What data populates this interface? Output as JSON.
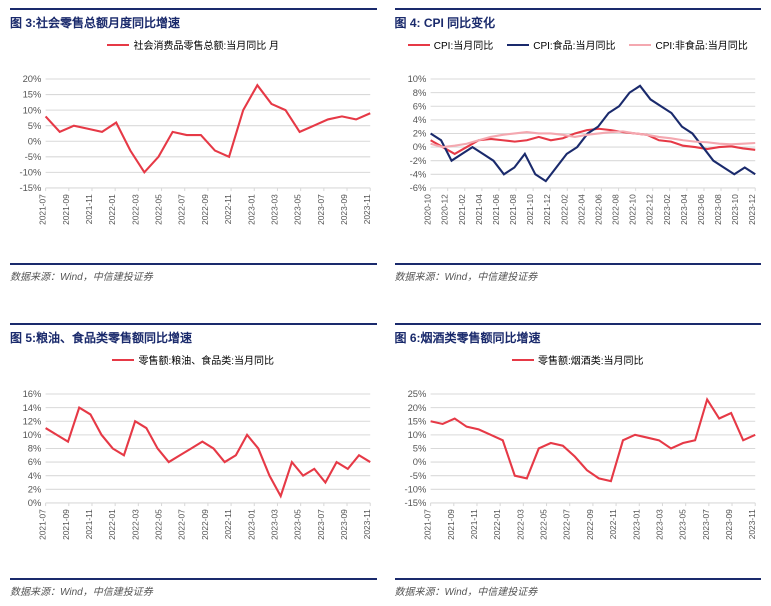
{
  "global": {
    "source_label": "数据来源：Wind，中信建投证券",
    "colors": {
      "title_border": "#1a2a6c",
      "grid": "#d9d9d9",
      "axis_text": "#555555",
      "bg": "#ffffff",
      "red": "#e63946",
      "navy": "#1a2a6c",
      "pink": "#f4a8b0"
    },
    "font": {
      "title": 12,
      "legend": 10,
      "axis": 9,
      "source": 10
    }
  },
  "charts": [
    {
      "id": "chart3",
      "title": "图 3:社会零售总额月度同比增速",
      "type": "line",
      "legend": [
        {
          "label": "社会消费品零售总额:当月同比 月",
          "color": "#e63946"
        }
      ],
      "y": {
        "min": -15,
        "max": 20,
        "step": 5,
        "suffix": "%"
      },
      "x": [
        "2021-07",
        "2021-09",
        "2021-11",
        "2022-01",
        "2022-03",
        "2022-05",
        "2022-07",
        "2022-09",
        "2022-11",
        "2023-01",
        "2023-03",
        "2023-05",
        "2023-07",
        "2023-09",
        "2023-11"
      ],
      "series": [
        {
          "color": "#e63946",
          "width": 2,
          "values": [
            8,
            3,
            5,
            4,
            3,
            6,
            -3,
            -10,
            -5,
            3,
            2,
            2,
            -3,
            -5,
            10,
            18,
            12,
            10,
            3,
            5,
            7,
            8,
            7,
            9
          ]
        }
      ]
    },
    {
      "id": "chart4",
      "title": "图 4: CPI 同比变化",
      "type": "line",
      "legend": [
        {
          "label": "CPI:当月同比",
          "color": "#e63946"
        },
        {
          "label": "CPI:食品:当月同比",
          "color": "#1a2a6c"
        },
        {
          "label": "CPI:非食品:当月同比",
          "color": "#f4a8b0"
        }
      ],
      "y": {
        "min": -6,
        "max": 10,
        "step": 2,
        "suffix": "%"
      },
      "x": [
        "2020-10",
        "2020-12",
        "2021-02",
        "2021-04",
        "2021-06",
        "2021-08",
        "2021-10",
        "2021-12",
        "2022-02",
        "2022-04",
        "2022-06",
        "2022-08",
        "2022-10",
        "2022-12",
        "2023-02",
        "2023-04",
        "2023-06",
        "2023-08",
        "2023-10",
        "2023-12"
      ],
      "series": [
        {
          "color": "#e63946",
          "width": 2,
          "values": [
            1,
            0,
            -1,
            0,
            1,
            1.2,
            1,
            0.8,
            1,
            1.5,
            1,
            1.3,
            2,
            2.5,
            2.7,
            2.5,
            2.2,
            2,
            1.8,
            1,
            0.8,
            0.2,
            0,
            -0.3,
            0,
            0.1,
            -0.2,
            -0.4
          ]
        },
        {
          "color": "#1a2a6c",
          "width": 2,
          "values": [
            2,
            1,
            -2,
            -1,
            0,
            -1,
            -2,
            -4,
            -3,
            -1,
            -4,
            -5,
            -3,
            -1,
            0,
            2,
            3,
            5,
            6,
            8,
            9,
            7,
            6,
            5,
            3,
            2,
            0,
            -2,
            -3,
            -4,
            -3,
            -4
          ]
        },
        {
          "color": "#f4a8b0",
          "width": 2,
          "values": [
            0.5,
            0,
            0.2,
            0.5,
            1,
            1.5,
            1.8,
            2,
            2.2,
            2,
            2,
            1.8,
            1.5,
            1.8,
            2,
            2.2,
            2.3,
            2,
            1.8,
            1.5,
            1.3,
            1,
            0.8,
            0.7,
            0.5,
            0.4,
            0.5,
            0.6
          ]
        }
      ]
    },
    {
      "id": "chart5",
      "title": "图 5:粮油、食品类零售额同比增速",
      "type": "line",
      "legend": [
        {
          "label": "零售额:粮油、食品类:当月同比",
          "color": "#e63946"
        }
      ],
      "y": {
        "min": 0,
        "max": 16,
        "step": 2,
        "suffix": "%"
      },
      "x": [
        "2021-07",
        "2021-09",
        "2021-11",
        "2022-01",
        "2022-03",
        "2022-05",
        "2022-07",
        "2022-09",
        "2022-11",
        "2023-01",
        "2023-03",
        "2023-05",
        "2023-07",
        "2023-09",
        "2023-11"
      ],
      "series": [
        {
          "color": "#e63946",
          "width": 2,
          "values": [
            11,
            10,
            9,
            14,
            13,
            10,
            8,
            7,
            12,
            11,
            8,
            6,
            7,
            8,
            9,
            8,
            6,
            7,
            10,
            8,
            4,
            1,
            6,
            4,
            5,
            3,
            6,
            5,
            7,
            6
          ]
        }
      ]
    },
    {
      "id": "chart6",
      "title": "图 6:烟酒类零售额同比增速",
      "type": "line",
      "legend": [
        {
          "label": "零售额:烟酒类:当月同比",
          "color": "#e63946"
        }
      ],
      "y": {
        "min": -15,
        "max": 25,
        "step": 5,
        "suffix": "%"
      },
      "x": [
        "2021-07",
        "2021-09",
        "2021-11",
        "2022-01",
        "2022-03",
        "2022-05",
        "2022-07",
        "2022-09",
        "2022-11",
        "2023-01",
        "2023-03",
        "2023-05",
        "2023-07",
        "2023-09",
        "2023-11"
      ],
      "series": [
        {
          "color": "#e63946",
          "width": 2,
          "values": [
            15,
            14,
            16,
            13,
            12,
            10,
            8,
            -5,
            -6,
            5,
            7,
            6,
            2,
            -3,
            -6,
            -7,
            8,
            10,
            9,
            8,
            5,
            7,
            8,
            23,
            16,
            18,
            8,
            10
          ]
        }
      ]
    }
  ]
}
